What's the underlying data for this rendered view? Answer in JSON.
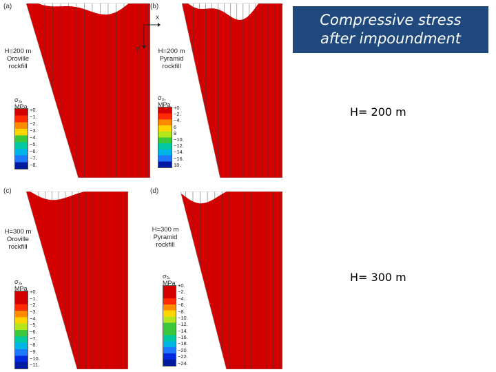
{
  "title": {
    "line1": "Compressive stress",
    "line2": "after impoundment"
  },
  "row_labels": {
    "top": "H= 200 m",
    "bottom": "H= 300 m"
  },
  "axes_indicator": {
    "x": "x",
    "y": "y"
  },
  "panels": [
    {
      "id": "a",
      "letter": "(a)",
      "caption": [
        "H=200 m",
        "Oroville",
        "rockfill"
      ],
      "legend_title": "σ₃, MPa",
      "legend_labels": [
        "+0.",
        "−1.",
        "−2.",
        "−3.",
        "−4.",
        "−5.",
        "−6.",
        "−7.",
        "−8."
      ]
    },
    {
      "id": "b",
      "letter": "(b)",
      "caption": [
        "H=200 m",
        "Pyramid",
        "rockfill"
      ],
      "legend_title": "σ₃, MPa",
      "legend_labels": [
        "+0.",
        "−2.",
        "−4.",
        "6",
        "8",
        "−10.",
        "−12.",
        "−14.",
        "−16.",
        "18."
      ]
    },
    {
      "id": "c",
      "letter": "(c)",
      "caption": [
        "H=300 m",
        "Oroville",
        "rockfill"
      ],
      "legend_title": "σ₃, MPa",
      "legend_labels": [
        "+0.",
        "−1.",
        "−2.",
        "−3.",
        "−4.",
        "−5.",
        "−6.",
        "−7.",
        "−8.",
        "−9.",
        "−10.",
        "−11."
      ]
    },
    {
      "id": "d",
      "letter": "(d)",
      "caption": [
        "H=300 m",
        "Pyramid",
        "rockfill"
      ],
      "legend_title": "σ₃, MPa",
      "legend_labels": [
        "+0.",
        "−2.",
        "−4.",
        "−6.",
        "−8.",
        "−10.",
        "−12.",
        "−14.",
        "−16.",
        "−18.",
        "−20.",
        "−22.",
        "−24."
      ]
    }
  ],
  "colors": {
    "title_bg": "#1f497d",
    "scale": [
      "#d40000",
      "#ff2a00",
      "#ff8c00",
      "#ffd400",
      "#b4e61e",
      "#3cc83c",
      "#00c8a0",
      "#00b4e6",
      "#1e78ff",
      "#0028dc",
      "#001aa0"
    ]
  }
}
